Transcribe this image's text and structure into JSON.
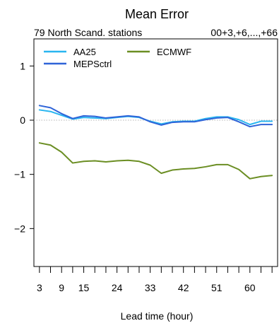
{
  "chart_data": {
    "type": "line",
    "title": "Mean Error",
    "subtitle_left": "79 North Scand. stations",
    "subtitle_right": "00+3,+6,...,+66",
    "xlabel": "Lead time (hour)",
    "ylabel": "",
    "x": [
      3,
      6,
      9,
      12,
      15,
      18,
      21,
      24,
      27,
      30,
      33,
      36,
      39,
      42,
      45,
      48,
      51,
      54,
      57,
      60,
      63,
      66
    ],
    "xticks": [
      3,
      6,
      9,
      12,
      15,
      18,
      21,
      24,
      27,
      30,
      33,
      36,
      39,
      42,
      45,
      48,
      51,
      54,
      57,
      60,
      63,
      66
    ],
    "xtick_labels": [
      "3",
      "9",
      "15",
      "24",
      "33",
      "42",
      "51",
      "60"
    ],
    "yticks": [
      -2,
      -1,
      0,
      1
    ],
    "ytick_labels": [
      "−2",
      "−1",
      "0",
      "1"
    ],
    "xlim": [
      1.5,
      67.5
    ],
    "ylim": [
      -2.7,
      1.5
    ],
    "reference_line_y": 0,
    "grid": false,
    "legend_position": "top-left",
    "series": [
      {
        "name": "AA25",
        "color": "#29b6f0",
        "values": [
          0.19,
          0.16,
          0.09,
          0.02,
          0.05,
          0.04,
          0.03,
          0.05,
          0.07,
          0.05,
          -0.02,
          -0.07,
          -0.03,
          -0.02,
          -0.02,
          0.03,
          0.06,
          0.06,
          0.01,
          -0.08,
          -0.02,
          -0.02
        ]
      },
      {
        "name": "MEPSctrl",
        "color": "#2f64d8",
        "values": [
          0.27,
          0.23,
          0.12,
          0.03,
          0.08,
          0.07,
          0.04,
          0.06,
          0.08,
          0.06,
          -0.03,
          -0.09,
          -0.04,
          -0.03,
          -0.03,
          0.01,
          0.04,
          0.05,
          -0.03,
          -0.12,
          -0.08,
          -0.08
        ]
      },
      {
        "name": "ECMWF",
        "color": "#6b8e23",
        "values": [
          -0.42,
          -0.46,
          -0.59,
          -0.79,
          -0.76,
          -0.75,
          -0.77,
          -0.75,
          -0.74,
          -0.76,
          -0.83,
          -0.98,
          -0.92,
          -0.9,
          -0.89,
          -0.86,
          -0.82,
          -0.82,
          -0.91,
          -1.08,
          -1.04,
          -1.02
        ]
      }
    ]
  }
}
